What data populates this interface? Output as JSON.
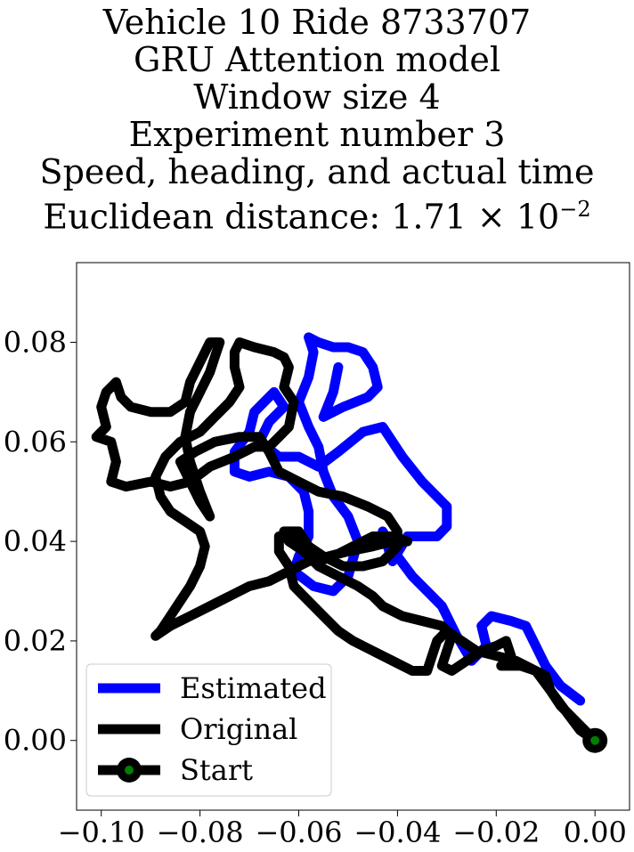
{
  "titles": [
    "Vehicle 10 Ride 8733707",
    "GRU Attention model",
    "Window size 4",
    "Experiment number 3",
    "Speed, heading, and actual time"
  ],
  "distance_label": "Euclidean distance: 1.71 × 10",
  "distance_exp": "−2",
  "chart_data": {
    "type": "line",
    "xlim": [
      -0.105,
      0.007
    ],
    "ylim": [
      -0.014,
      0.096
    ],
    "x_ticks": [
      {
        "value": -0.1,
        "label": "−0.10"
      },
      {
        "value": -0.08,
        "label": "−0.08"
      },
      {
        "value": -0.06,
        "label": "−0.06"
      },
      {
        "value": -0.04,
        "label": "−0.04"
      },
      {
        "value": -0.02,
        "label": "−0.02"
      },
      {
        "value": 0.0,
        "label": "0.00"
      }
    ],
    "y_ticks": [
      {
        "value": 0.0,
        "label": "0.00"
      },
      {
        "value": 0.02,
        "label": "0.02"
      },
      {
        "value": 0.04,
        "label": "0.04"
      },
      {
        "value": 0.06,
        "label": "0.06"
      },
      {
        "value": 0.08,
        "label": "0.08"
      }
    ],
    "grid": false,
    "legend_position": "lower-left",
    "series": [
      {
        "name": "Estimated",
        "color": "#0000ff",
        "points": [
          [
            -0.003,
            0.008
          ],
          [
            -0.007,
            0.011
          ],
          [
            -0.01,
            0.015
          ],
          [
            -0.012,
            0.019
          ],
          [
            -0.014,
            0.023
          ],
          [
            -0.017,
            0.024
          ],
          [
            -0.021,
            0.025
          ],
          [
            -0.023,
            0.023
          ],
          [
            -0.022,
            0.019
          ],
          [
            -0.025,
            0.016
          ],
          [
            -0.028,
            0.021
          ],
          [
            -0.031,
            0.027
          ],
          [
            -0.034,
            0.03
          ],
          [
            -0.037,
            0.033
          ],
          [
            -0.04,
            0.037
          ],
          [
            -0.043,
            0.042
          ],
          [
            -0.041,
            0.036
          ],
          [
            -0.038,
            0.041
          ],
          [
            -0.032,
            0.041
          ],
          [
            -0.03,
            0.043
          ],
          [
            -0.03,
            0.047
          ],
          [
            -0.035,
            0.052
          ],
          [
            -0.039,
            0.057
          ],
          [
            -0.043,
            0.063
          ],
          [
            -0.047,
            0.062
          ],
          [
            -0.052,
            0.058
          ],
          [
            -0.056,
            0.055
          ],
          [
            -0.06,
            0.057
          ],
          [
            -0.064,
            0.057
          ],
          [
            -0.068,
            0.06
          ],
          [
            -0.066,
            0.064
          ],
          [
            -0.063,
            0.067
          ],
          [
            -0.065,
            0.07
          ],
          [
            -0.067,
            0.068
          ],
          [
            -0.069,
            0.066
          ],
          [
            -0.07,
            0.062
          ],
          [
            -0.073,
            0.058
          ],
          [
            -0.073,
            0.054
          ],
          [
            -0.07,
            0.053
          ],
          [
            -0.066,
            0.054
          ],
          [
            -0.062,
            0.053
          ],
          [
            -0.059,
            0.05
          ],
          [
            -0.058,
            0.046
          ],
          [
            -0.058,
            0.041
          ],
          [
            -0.06,
            0.037
          ],
          [
            -0.061,
            0.034
          ],
          [
            -0.057,
            0.031
          ],
          [
            -0.053,
            0.03
          ],
          [
            -0.05,
            0.033
          ],
          [
            -0.048,
            0.04
          ],
          [
            -0.05,
            0.045
          ],
          [
            -0.053,
            0.049
          ],
          [
            -0.055,
            0.054
          ],
          [
            -0.056,
            0.059
          ],
          [
            -0.058,
            0.063
          ],
          [
            -0.06,
            0.068
          ],
          [
            -0.058,
            0.073
          ],
          [
            -0.057,
            0.078
          ],
          [
            -0.058,
            0.081
          ],
          [
            -0.056,
            0.08
          ],
          [
            -0.053,
            0.079
          ],
          [
            -0.05,
            0.079
          ],
          [
            -0.047,
            0.078
          ],
          [
            -0.045,
            0.075
          ],
          [
            -0.044,
            0.071
          ],
          [
            -0.046,
            0.069
          ],
          [
            -0.051,
            0.067
          ],
          [
            -0.055,
            0.065
          ],
          [
            -0.053,
            0.07
          ],
          [
            -0.052,
            0.075
          ]
        ]
      },
      {
        "name": "Original",
        "color": "#000000",
        "points": [
          [
            0.0,
            0.0
          ],
          [
            -0.003,
            0.002
          ],
          [
            -0.006,
            0.006
          ],
          [
            -0.009,
            0.01
          ],
          [
            -0.012,
            0.014
          ],
          [
            -0.016,
            0.016
          ],
          [
            -0.02,
            0.017
          ],
          [
            -0.024,
            0.018
          ],
          [
            -0.027,
            0.02
          ],
          [
            -0.03,
            0.022
          ],
          [
            -0.032,
            0.02
          ],
          [
            -0.033,
            0.017
          ],
          [
            -0.034,
            0.014
          ],
          [
            -0.037,
            0.014
          ],
          [
            -0.041,
            0.016
          ],
          [
            -0.045,
            0.018
          ],
          [
            -0.049,
            0.02
          ],
          [
            -0.052,
            0.022
          ],
          [
            -0.055,
            0.025
          ],
          [
            -0.058,
            0.028
          ],
          [
            -0.061,
            0.031
          ],
          [
            -0.062,
            0.035
          ],
          [
            -0.064,
            0.038
          ],
          [
            -0.064,
            0.041
          ],
          [
            -0.061,
            0.041
          ],
          [
            -0.058,
            0.039
          ],
          [
            -0.055,
            0.037
          ],
          [
            -0.051,
            0.035
          ],
          [
            -0.047,
            0.035
          ],
          [
            -0.043,
            0.036
          ],
          [
            -0.04,
            0.039
          ],
          [
            -0.04,
            0.042
          ],
          [
            -0.042,
            0.045
          ],
          [
            -0.046,
            0.047
          ],
          [
            -0.051,
            0.049
          ],
          [
            -0.056,
            0.05
          ],
          [
            -0.06,
            0.052
          ],
          [
            -0.064,
            0.054
          ],
          [
            -0.066,
            0.058
          ],
          [
            -0.068,
            0.061
          ],
          [
            -0.072,
            0.061
          ],
          [
            -0.077,
            0.06
          ],
          [
            -0.081,
            0.058
          ],
          [
            -0.084,
            0.056
          ],
          [
            -0.082,
            0.052
          ],
          [
            -0.08,
            0.048
          ],
          [
            -0.078,
            0.045
          ],
          [
            -0.08,
            0.05
          ],
          [
            -0.082,
            0.056
          ],
          [
            -0.083,
            0.061
          ],
          [
            -0.082,
            0.066
          ],
          [
            -0.08,
            0.07
          ],
          [
            -0.078,
            0.074
          ],
          [
            -0.077,
            0.077
          ],
          [
            -0.076,
            0.08
          ],
          [
            -0.078,
            0.08
          ],
          [
            -0.08,
            0.076
          ],
          [
            -0.082,
            0.072
          ],
          [
            -0.083,
            0.068
          ],
          [
            -0.086,
            0.066
          ],
          [
            -0.09,
            0.066
          ],
          [
            -0.094,
            0.067
          ],
          [
            -0.096,
            0.069
          ],
          [
            -0.097,
            0.072
          ],
          [
            -0.099,
            0.07
          ],
          [
            -0.1,
            0.067
          ],
          [
            -0.099,
            0.063
          ],
          [
            -0.101,
            0.061
          ],
          [
            -0.098,
            0.06
          ],
          [
            -0.097,
            0.056
          ],
          [
            -0.098,
            0.052
          ],
          [
            -0.095,
            0.051
          ],
          [
            -0.09,
            0.052
          ],
          [
            -0.086,
            0.051
          ],
          [
            -0.082,
            0.052
          ],
          [
            -0.078,
            0.055
          ],
          [
            -0.073,
            0.057
          ],
          [
            -0.069,
            0.059
          ],
          [
            -0.066,
            0.059
          ],
          [
            -0.064,
            0.061
          ],
          [
            -0.062,
            0.063
          ],
          [
            -0.061,
            0.068
          ],
          [
            -0.063,
            0.071
          ],
          [
            -0.062,
            0.075
          ],
          [
            -0.063,
            0.077
          ],
          [
            -0.065,
            0.078
          ],
          [
            -0.069,
            0.079
          ],
          [
            -0.072,
            0.08
          ],
          [
            -0.073,
            0.078
          ],
          [
            -0.073,
            0.075
          ],
          [
            -0.072,
            0.071
          ],
          [
            -0.074,
            0.068
          ],
          [
            -0.077,
            0.065
          ],
          [
            -0.08,
            0.062
          ],
          [
            -0.084,
            0.06
          ],
          [
            -0.087,
            0.057
          ],
          [
            -0.089,
            0.053
          ],
          [
            -0.088,
            0.049
          ],
          [
            -0.086,
            0.046
          ],
          [
            -0.083,
            0.044
          ],
          [
            -0.08,
            0.042
          ],
          [
            -0.079,
            0.039
          ],
          [
            -0.08,
            0.035
          ],
          [
            -0.082,
            0.031
          ],
          [
            -0.084,
            0.028
          ],
          [
            -0.086,
            0.025
          ],
          [
            -0.088,
            0.022
          ],
          [
            -0.089,
            0.021
          ],
          [
            -0.086,
            0.023
          ],
          [
            -0.082,
            0.025
          ],
          [
            -0.078,
            0.027
          ],
          [
            -0.074,
            0.029
          ],
          [
            -0.07,
            0.031
          ],
          [
            -0.066,
            0.032
          ],
          [
            -0.062,
            0.034
          ],
          [
            -0.058,
            0.036
          ],
          [
            -0.054,
            0.037
          ],
          [
            -0.05,
            0.038
          ],
          [
            -0.045,
            0.039
          ],
          [
            -0.041,
            0.04
          ],
          [
            -0.038,
            0.04
          ],
          [
            -0.041,
            0.041
          ],
          [
            -0.045,
            0.041
          ],
          [
            -0.049,
            0.039
          ],
          [
            -0.053,
            0.037
          ],
          [
            -0.056,
            0.036
          ],
          [
            -0.058,
            0.039
          ],
          [
            -0.06,
            0.042
          ],
          [
            -0.063,
            0.042
          ],
          [
            -0.062,
            0.04
          ],
          [
            -0.059,
            0.038
          ],
          [
            -0.056,
            0.035
          ],
          [
            -0.052,
            0.033
          ],
          [
            -0.048,
            0.031
          ],
          [
            -0.045,
            0.029
          ],
          [
            -0.043,
            0.027
          ],
          [
            -0.039,
            0.025
          ],
          [
            -0.035,
            0.024
          ],
          [
            -0.031,
            0.023
          ],
          [
            -0.029,
            0.021
          ],
          [
            -0.03,
            0.018
          ],
          [
            -0.031,
            0.015
          ],
          [
            -0.029,
            0.014
          ],
          [
            -0.026,
            0.016
          ],
          [
            -0.023,
            0.018
          ],
          [
            -0.02,
            0.019
          ],
          [
            -0.018,
            0.02
          ],
          [
            -0.017,
            0.017
          ],
          [
            -0.019,
            0.015
          ],
          [
            -0.015,
            0.015
          ],
          [
            -0.012,
            0.014
          ],
          [
            -0.01,
            0.013
          ],
          [
            -0.009,
            0.01
          ],
          [
            -0.007,
            0.007
          ],
          [
            -0.005,
            0.005
          ],
          [
            -0.003,
            0.003
          ],
          [
            0.0,
            0.0
          ]
        ]
      }
    ],
    "start_point": {
      "x": 0.0,
      "y": 0.0,
      "name": "Start"
    }
  },
  "legend": {
    "items": [
      {
        "label": "Estimated",
        "color": "#0000ff"
      },
      {
        "label": "Original",
        "color": "#000000"
      },
      {
        "label": "Start",
        "color": "#000000",
        "marker_fill": "#008000"
      }
    ]
  }
}
